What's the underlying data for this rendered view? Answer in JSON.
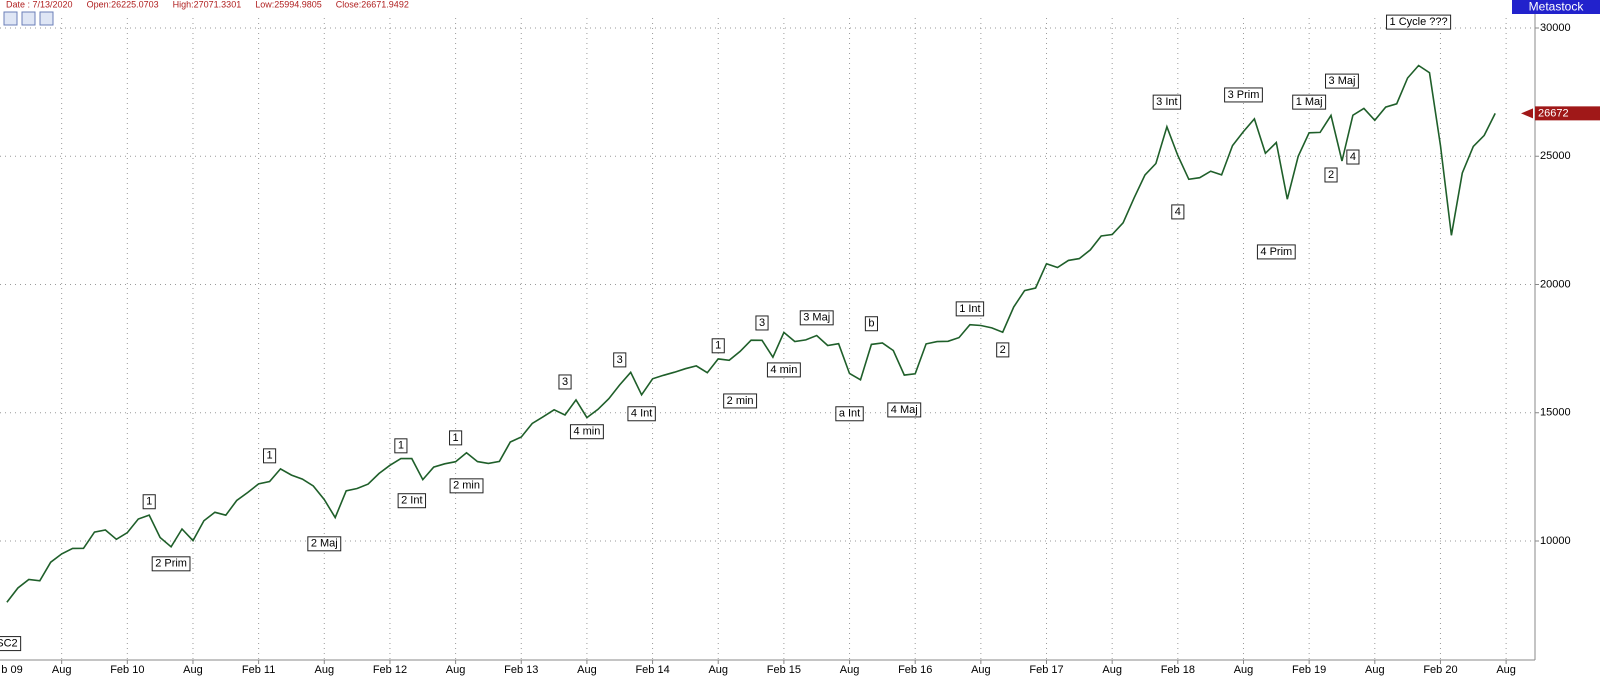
{
  "chart_data": {
    "type": "line",
    "info": [
      "Date : 7/13/2020",
      "Open:26225.0703",
      "High:27071.3301",
      "Low:25994.9805",
      "Close:26671.9492"
    ],
    "brand": "Metastock",
    "last_value": 26672,
    "color": "#1f5f2a",
    "grid": true,
    "ylim": [
      5360,
      30390
    ],
    "yticks": [
      10000,
      15000,
      20000,
      25000,
      30000
    ],
    "xlim": [
      "2009-02",
      "2020-10"
    ],
    "xticks": [
      {
        "value": "2009-02",
        "label": "b 09"
      },
      {
        "value": "2009-08",
        "label": "Aug"
      },
      {
        "value": "2010-02",
        "label": "Feb 10"
      },
      {
        "value": "2010-08",
        "label": "Aug"
      },
      {
        "value": "2011-02",
        "label": "Feb 11"
      },
      {
        "value": "2011-08",
        "label": "Aug"
      },
      {
        "value": "2012-02",
        "label": "Feb 12"
      },
      {
        "value": "2012-08",
        "label": "Aug"
      },
      {
        "value": "2013-02",
        "label": "Feb 13"
      },
      {
        "value": "2013-08",
        "label": "Aug"
      },
      {
        "value": "2014-02",
        "label": "Feb 14"
      },
      {
        "value": "2014-08",
        "label": "Aug"
      },
      {
        "value": "2015-02",
        "label": "Feb 15"
      },
      {
        "value": "2015-08",
        "label": "Aug"
      },
      {
        "value": "2016-02",
        "label": "Feb 16"
      },
      {
        "value": "2016-08",
        "label": "Aug"
      },
      {
        "value": "2017-02",
        "label": "Feb 17"
      },
      {
        "value": "2017-08",
        "label": "Aug"
      },
      {
        "value": "2018-02",
        "label": "Feb 18"
      },
      {
        "value": "2018-08",
        "label": "Aug"
      },
      {
        "value": "2019-02",
        "label": "Feb 19"
      },
      {
        "value": "2019-08",
        "label": "Aug"
      },
      {
        "value": "2020-02",
        "label": "Feb 20"
      },
      {
        "value": "2020-08",
        "label": "Aug"
      }
    ],
    "x": [
      "2009-03",
      "2009-04",
      "2009-05",
      "2009-06",
      "2009-07",
      "2009-08",
      "2009-09",
      "2009-10",
      "2009-11",
      "2009-12",
      "2010-01",
      "2010-02",
      "2010-03",
      "2010-04",
      "2010-05",
      "2010-06",
      "2010-07",
      "2010-08",
      "2010-09",
      "2010-10",
      "2010-11",
      "2010-12",
      "2011-01",
      "2011-02",
      "2011-03",
      "2011-04",
      "2011-05",
      "2011-06",
      "2011-07",
      "2011-08",
      "2011-09",
      "2011-10",
      "2011-11",
      "2011-12",
      "2012-01",
      "2012-02",
      "2012-03",
      "2012-04",
      "2012-05",
      "2012-06",
      "2012-07",
      "2012-08",
      "2012-09",
      "2012-10",
      "2012-11",
      "2012-12",
      "2013-01",
      "2013-02",
      "2013-03",
      "2013-04",
      "2013-05",
      "2013-06",
      "2013-07",
      "2013-08",
      "2013-09",
      "2013-10",
      "2013-11",
      "2013-12",
      "2014-01",
      "2014-02",
      "2014-03",
      "2014-04",
      "2014-05",
      "2014-06",
      "2014-07",
      "2014-08",
      "2014-09",
      "2014-10",
      "2014-11",
      "2014-12",
      "2015-01",
      "2015-02",
      "2015-03",
      "2015-04",
      "2015-05",
      "2015-06",
      "2015-07",
      "2015-08",
      "2015-09",
      "2015-10",
      "2015-11",
      "2015-12",
      "2016-01",
      "2016-02",
      "2016-03",
      "2016-04",
      "2016-05",
      "2016-06",
      "2016-07",
      "2016-08",
      "2016-09",
      "2016-10",
      "2016-11",
      "2016-12",
      "2017-01",
      "2017-02",
      "2017-03",
      "2017-04",
      "2017-05",
      "2017-06",
      "2017-07",
      "2017-08",
      "2017-09",
      "2017-10",
      "2017-11",
      "2017-12",
      "2018-01",
      "2018-02",
      "2018-03",
      "2018-04",
      "2018-05",
      "2018-06",
      "2018-07",
      "2018-08",
      "2018-09",
      "2018-10",
      "2018-11",
      "2018-12",
      "2019-01",
      "2019-02",
      "2019-03",
      "2019-04",
      "2019-05",
      "2019-06",
      "2019-07",
      "2019-08",
      "2019-09",
      "2019-10",
      "2019-11",
      "2019-12",
      "2020-01",
      "2020-02",
      "2020-03",
      "2020-04",
      "2020-05",
      "2020-06",
      "2020-07"
    ],
    "values": [
      7609,
      8168,
      8500,
      8447,
      9172,
      9496,
      9712,
      9713,
      10345,
      10428,
      10067,
      10325,
      10857,
      11009,
      10137,
      9774,
      10466,
      10015,
      10788,
      11118,
      11006,
      11578,
      11892,
      12226,
      12320,
      12811,
      12570,
      12414,
      12143,
      11614,
      10913,
      11955,
      12046,
      12218,
      12633,
      12952,
      13212,
      13214,
      12393,
      12880,
      13009,
      13091,
      13437,
      13096,
      13026,
      13104,
      13861,
      14054,
      14579,
      14840,
      15116,
      14910,
      15500,
      14810,
      15130,
      15546,
      16086,
      16577,
      15699,
      16322,
      16458,
      16581,
      16717,
      16827,
      16563,
      17098,
      17043,
      17391,
      17828,
      17823,
      17165,
      18133,
      17776,
      17841,
      18011,
      17620,
      17690,
      16528,
      16285,
      17664,
      17720,
      17425,
      16466,
      16517,
      17685,
      17774,
      17787,
      17930,
      18432,
      18401,
      18308,
      18142,
      19124,
      19763,
      19864,
      20812,
      20663,
      20941,
      21009,
      21350,
      21891,
      21948,
      22405,
      23377,
      24272,
      24719,
      26149,
      25029,
      24103,
      24163,
      24416,
      24271,
      25415,
      25965,
      26458,
      25116,
      25538,
      23327,
      24999,
      25916,
      25929,
      26593,
      24815,
      26600,
      26864,
      26403,
      26917,
      27046,
      28051,
      28538,
      28256,
      25409,
      21917,
      24346,
      25383,
      25813,
      26672
    ],
    "annotations": [
      {
        "label": "SC2",
        "x": "2009-03",
        "y": 6000
      },
      {
        "label": "1",
        "x": "2010-04",
        "y": 11530
      },
      {
        "label": "2 Prim",
        "x": "2010-06",
        "y": 9110
      },
      {
        "label": "1",
        "x": "2011-03",
        "y": 13320
      },
      {
        "label": "2 Maj",
        "x": "2011-08",
        "y": 9890
      },
      {
        "label": "1",
        "x": "2012-03",
        "y": 13710
      },
      {
        "label": "2 Int",
        "x": "2012-04",
        "y": 11570
      },
      {
        "label": "1",
        "x": "2012-08",
        "y": 14020
      },
      {
        "label": "2 min",
        "x": "2012-09",
        "y": 12150
      },
      {
        "label": "3",
        "x": "2013-06",
        "y": 16200
      },
      {
        "label": "4 min",
        "x": "2013-08",
        "y": 14260
      },
      {
        "label": "3",
        "x": "2013-11",
        "y": 17060
      },
      {
        "label": "4 Int",
        "x": "2014-01",
        "y": 14960
      },
      {
        "label": "1",
        "x": "2014-08",
        "y": 17610
      },
      {
        "label": "2 min",
        "x": "2014-10",
        "y": 15460
      },
      {
        "label": "3",
        "x": "2014-12",
        "y": 18500
      },
      {
        "label": "4 min",
        "x": "2015-02",
        "y": 16670
      },
      {
        "label": "3 Maj",
        "x": "2015-05",
        "y": 18700
      },
      {
        "label": "a Int",
        "x": "2015-08",
        "y": 14960
      },
      {
        "label": "b",
        "x": "2015-10",
        "y": 18470
      },
      {
        "label": "4 Maj",
        "x": "2016-01",
        "y": 15110
      },
      {
        "label": "1 Int",
        "x": "2016-07",
        "y": 19050
      },
      {
        "label": "2",
        "x": "2016-10",
        "y": 17450
      },
      {
        "label": "3 Int",
        "x": "2018-01",
        "y": 27110
      },
      {
        "label": "4",
        "x": "2018-02",
        "y": 22830
      },
      {
        "label": "3 Prim",
        "x": "2018-08",
        "y": 27390
      },
      {
        "label": "4 Prim",
        "x": "2018-11",
        "y": 21270
      },
      {
        "label": "1 Maj",
        "x": "2019-02",
        "y": 27110
      },
      {
        "label": "2",
        "x": "2019-04",
        "y": 24270
      },
      {
        "label": "3 Maj",
        "x": "2019-05",
        "y": 27930
      },
      {
        "label": "4",
        "x": "2019-06",
        "y": 24970
      },
      {
        "label": "1 Cycle ???",
        "x": "2019-12",
        "y": 30230
      }
    ]
  }
}
